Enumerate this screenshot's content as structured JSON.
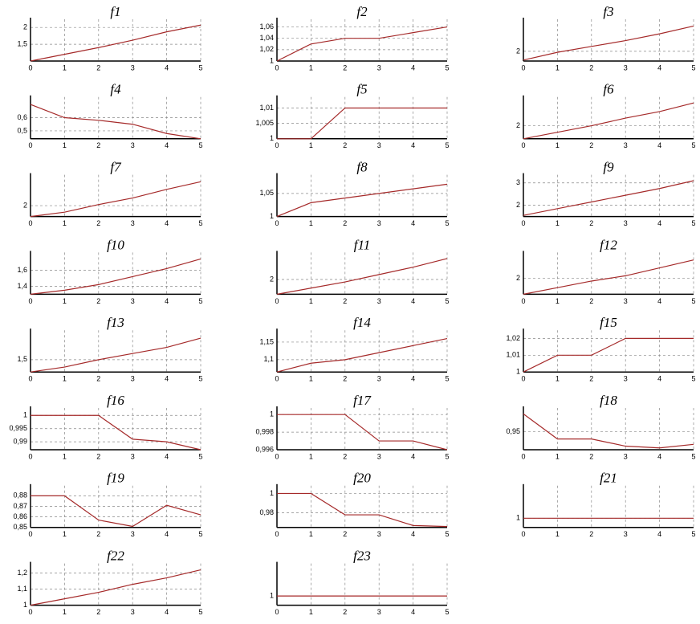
{
  "chart_data": [
    {
      "type": "line",
      "title": "f1",
      "x": [
        0,
        1,
        2,
        3,
        4,
        5
      ],
      "values": [
        1,
        1.2,
        1.4,
        1.62,
        1.87,
        2.07
      ],
      "color": "#a52a2a",
      "xlim": [
        0,
        5
      ],
      "xticks": [
        0,
        1,
        2,
        3,
        4,
        5
      ],
      "ylim": [
        1,
        2.1
      ],
      "yticks": [
        {
          "value": 1.5,
          "label": "1,5"
        },
        2
      ]
    },
    {
      "type": "line",
      "title": "f2",
      "x": [
        0,
        1,
        2,
        3,
        4,
        5
      ],
      "values": [
        1,
        1.03,
        1.04,
        1.04,
        1.05,
        1.06
      ],
      "color": "#a52a2a",
      "xlim": [
        0,
        5
      ],
      "xticks": [
        0,
        1,
        2,
        3,
        4,
        5
      ],
      "ylim": [
        1,
        1.065
      ],
      "yticks": [
        1,
        {
          "value": 1.02,
          "label": "1,02"
        },
        {
          "value": 1.04,
          "label": "1,04"
        },
        {
          "value": 1.06,
          "label": "1,06"
        }
      ]
    },
    {
      "type": "line",
      "title": "f3",
      "x": [
        0,
        1,
        2,
        3,
        4,
        5
      ],
      "values": [
        1.55,
        1.95,
        2.25,
        2.55,
        2.9,
        3.3
      ],
      "color": "#a52a2a",
      "xlim": [
        0,
        5
      ],
      "xticks": [
        0,
        1,
        2,
        3,
        4,
        5
      ],
      "ylim": [
        1.5,
        3.4
      ],
      "yticks": [
        2
      ]
    },
    {
      "type": "line",
      "title": "f4",
      "x": [
        0,
        1,
        2,
        3,
        4,
        5
      ],
      "values": [
        0.7,
        0.6,
        0.58,
        0.55,
        0.48,
        0.44
      ],
      "color": "#a52a2a",
      "xlim": [
        0,
        5
      ],
      "xticks": [
        0,
        1,
        2,
        3,
        4,
        5
      ],
      "ylim": [
        0.44,
        0.72
      ],
      "yticks": [
        {
          "value": 0.5,
          "label": "0,5"
        },
        {
          "value": 0.6,
          "label": "0,6"
        }
      ]
    },
    {
      "type": "line",
      "title": "f5",
      "x": [
        0,
        1,
        2,
        3,
        4,
        5
      ],
      "values": [
        1,
        1,
        1.01,
        1.01,
        1.01,
        1.01
      ],
      "color": "#a52a2a",
      "xlim": [
        0,
        5
      ],
      "xticks": [
        0,
        1,
        2,
        3,
        4,
        5
      ],
      "ylim": [
        1,
        1.012
      ],
      "yticks": [
        1,
        {
          "value": 1.005,
          "label": "1,005"
        },
        {
          "value": 1.01,
          "label": "1,01"
        }
      ]
    },
    {
      "type": "line",
      "title": "f6",
      "x": [
        0,
        1,
        2,
        3,
        4,
        5
      ],
      "values": [
        1.4,
        1.7,
        2,
        2.35,
        2.65,
        3.05
      ],
      "color": "#a52a2a",
      "xlim": [
        0,
        5
      ],
      "xticks": [
        0,
        1,
        2,
        3,
        4,
        5
      ],
      "ylim": [
        1.4,
        3.1
      ],
      "yticks": [
        2
      ]
    },
    {
      "type": "line",
      "title": "f7",
      "x": [
        0,
        1,
        2,
        3,
        4,
        5
      ],
      "values": [
        1.5,
        1.7,
        2.05,
        2.35,
        2.75,
        3.1
      ],
      "color": "#a52a2a",
      "xlim": [
        0,
        5
      ],
      "xticks": [
        0,
        1,
        2,
        3,
        4,
        5
      ],
      "ylim": [
        1.5,
        3.2
      ],
      "yticks": [
        2
      ]
    },
    {
      "type": "line",
      "title": "f8",
      "x": [
        0,
        1,
        2,
        3,
        4,
        5
      ],
      "values": [
        1,
        1.03,
        1.04,
        1.05,
        1.06,
        1.07
      ],
      "color": "#a52a2a",
      "xlim": [
        0,
        5
      ],
      "xticks": [
        0,
        1,
        2,
        3,
        4,
        5
      ],
      "ylim": [
        1,
        1.08
      ],
      "yticks": [
        1,
        {
          "value": 1.05,
          "label": "1,05"
        }
      ]
    },
    {
      "type": "line",
      "title": "f9",
      "x": [
        0,
        1,
        2,
        3,
        4,
        5
      ],
      "values": [
        1.55,
        1.85,
        2.15,
        2.45,
        2.75,
        3.1
      ],
      "color": "#a52a2a",
      "xlim": [
        0,
        5
      ],
      "xticks": [
        0,
        1,
        2,
        3,
        4,
        5
      ],
      "ylim": [
        1.5,
        3.15
      ],
      "yticks": [
        2,
        3
      ]
    },
    {
      "type": "line",
      "title": "f10",
      "x": [
        0,
        1,
        2,
        3,
        4,
        5
      ],
      "values": [
        1.3,
        1.35,
        1.42,
        1.52,
        1.62,
        1.74
      ],
      "color": "#a52a2a",
      "xlim": [
        0,
        5
      ],
      "xticks": [
        0,
        1,
        2,
        3,
        4,
        5
      ],
      "ylim": [
        1.3,
        1.76
      ],
      "yticks": [
        {
          "value": 1.4,
          "label": "1,4"
        },
        {
          "value": 1.6,
          "label": "1,6"
        }
      ]
    },
    {
      "type": "line",
      "title": "f11",
      "x": [
        0,
        1,
        2,
        3,
        4,
        5
      ],
      "values": [
        1.4,
        1.65,
        1.9,
        2.2,
        2.5,
        2.85
      ],
      "color": "#a52a2a",
      "xlim": [
        0,
        5
      ],
      "xticks": [
        0,
        1,
        2,
        3,
        4,
        5
      ],
      "ylim": [
        1.4,
        2.9
      ],
      "yticks": [
        2
      ]
    },
    {
      "type": "line",
      "title": "f12",
      "x": [
        0,
        1,
        2,
        3,
        4,
        5
      ],
      "values": [
        1.4,
        1.65,
        1.9,
        2.1,
        2.4,
        2.7
      ],
      "color": "#a52a2a",
      "xlim": [
        0,
        5
      ],
      "xticks": [
        0,
        1,
        2,
        3,
        4,
        5
      ],
      "ylim": [
        1.4,
        2.8
      ],
      "yticks": [
        2
      ]
    },
    {
      "type": "line",
      "title": "f13",
      "x": [
        0,
        1,
        2,
        3,
        4,
        5
      ],
      "values": [
        1.3,
        1.38,
        1.5,
        1.6,
        1.7,
        1.85
      ],
      "color": "#a52a2a",
      "xlim": [
        0,
        5
      ],
      "xticks": [
        0,
        1,
        2,
        3,
        4,
        5
      ],
      "ylim": [
        1.3,
        1.9
      ],
      "yticks": [
        {
          "value": 1.5,
          "label": "1,5"
        }
      ]
    },
    {
      "type": "line",
      "title": "f14",
      "x": [
        0,
        1,
        2,
        3,
        4,
        5
      ],
      "values": [
        1.065,
        1.09,
        1.1,
        1.12,
        1.14,
        1.16
      ],
      "color": "#a52a2a",
      "xlim": [
        0,
        5
      ],
      "xticks": [
        0,
        1,
        2,
        3,
        4,
        5
      ],
      "ylim": [
        1.065,
        1.17
      ],
      "yticks": [
        {
          "value": 1.1,
          "label": "1,1"
        },
        {
          "value": 1.15,
          "label": "1,15"
        }
      ]
    },
    {
      "type": "line",
      "title": "f15",
      "x": [
        0,
        1,
        2,
        3,
        4,
        5
      ],
      "values": [
        1,
        1.01,
        1.01,
        1.02,
        1.02,
        1.02
      ],
      "color": "#a52a2a",
      "xlim": [
        0,
        5
      ],
      "xticks": [
        0,
        1,
        2,
        3,
        4,
        5
      ],
      "ylim": [
        1,
        1.022
      ],
      "yticks": [
        1,
        {
          "value": 1.01,
          "label": "1,01"
        },
        {
          "value": 1.02,
          "label": "1,02"
        }
      ]
    },
    {
      "type": "line",
      "title": "f16",
      "x": [
        0,
        1,
        2,
        3,
        4,
        5
      ],
      "values": [
        1,
        1,
        1,
        0.991,
        0.99,
        0.987
      ],
      "color": "#a52a2a",
      "xlim": [
        0,
        5
      ],
      "xticks": [
        0,
        1,
        2,
        3,
        4,
        5
      ],
      "ylim": [
        0.987,
        1.001
      ],
      "yticks": [
        {
          "value": 0.99,
          "label": "0,99"
        },
        {
          "value": 0.995,
          "label": "0,995"
        },
        1
      ]
    },
    {
      "type": "line",
      "title": "f17",
      "x": [
        0,
        1,
        2,
        3,
        4,
        5
      ],
      "values": [
        1,
        1,
        1,
        0.997,
        0.997,
        0.996
      ],
      "color": "#a52a2a",
      "xlim": [
        0,
        5
      ],
      "xticks": [
        0,
        1,
        2,
        3,
        4,
        5
      ],
      "ylim": [
        0.996,
        1.0002
      ],
      "yticks": [
        {
          "value": 0.996,
          "label": "0,996"
        },
        {
          "value": 0.998,
          "label": "0,998"
        },
        1
      ]
    },
    {
      "type": "line",
      "title": "f18",
      "x": [
        0,
        1,
        2,
        3,
        4,
        5
      ],
      "values": [
        1,
        0.93,
        0.93,
        0.91,
        0.905,
        0.915
      ],
      "color": "#a52a2a",
      "xlim": [
        0,
        5
      ],
      "xticks": [
        0,
        1,
        2,
        3,
        4,
        5
      ],
      "ylim": [
        0.9,
        1.003
      ],
      "yticks": [
        {
          "value": 0.95,
          "label": "0,95"
        }
      ]
    },
    {
      "type": "line",
      "title": "f19",
      "x": [
        0,
        1,
        2,
        3,
        4,
        5
      ],
      "values": [
        0.88,
        0.88,
        0.857,
        0.851,
        0.871,
        0.862
      ],
      "color": "#a52a2a",
      "xlim": [
        0,
        5
      ],
      "xticks": [
        0,
        1,
        2,
        3,
        4,
        5
      ],
      "ylim": [
        0.85,
        0.885
      ],
      "yticks": [
        {
          "value": 0.85,
          "label": "0,85"
        },
        {
          "value": 0.86,
          "label": "0,86"
        },
        {
          "value": 0.87,
          "label": "0,87"
        },
        {
          "value": 0.88,
          "label": "0,88"
        }
      ]
    },
    {
      "type": "line",
      "title": "f20",
      "x": [
        0,
        1,
        2,
        3,
        4,
        5
      ],
      "values": [
        1,
        1,
        0.978,
        0.978,
        0.967,
        0.966
      ],
      "color": "#a52a2a",
      "xlim": [
        0,
        5
      ],
      "xticks": [
        0,
        1,
        2,
        3,
        4,
        5
      ],
      "ylim": [
        0.965,
        1.003
      ],
      "yticks": [
        {
          "value": 0.98,
          "label": "0,98"
        },
        1
      ]
    },
    {
      "type": "line",
      "title": "f21",
      "x": [
        0,
        1,
        2,
        3,
        4,
        5
      ],
      "values": [
        1,
        1,
        1,
        1,
        1,
        1
      ],
      "color": "#a52a2a",
      "xlim": [
        0,
        5
      ],
      "xticks": [
        0,
        1,
        2,
        3,
        4,
        5
      ],
      "ylim": [
        0.95,
        1.15
      ],
      "yticks": [
        1
      ]
    },
    {
      "type": "line",
      "title": "f22",
      "x": [
        0,
        1,
        2,
        3,
        4,
        5
      ],
      "values": [
        1,
        1.04,
        1.08,
        1.13,
        1.17,
        1.22
      ],
      "color": "#a52a2a",
      "xlim": [
        0,
        5
      ],
      "xticks": [
        0,
        1,
        2,
        3,
        4,
        5
      ],
      "ylim": [
        1,
        1.23
      ],
      "yticks": [
        1,
        {
          "value": 1.1,
          "label": "1,1"
        },
        {
          "value": 1.2,
          "label": "1,2"
        }
      ]
    },
    {
      "type": "line",
      "title": "f23",
      "x": [
        0,
        1,
        2,
        3,
        4,
        5
      ],
      "values": [
        1,
        1,
        1,
        1,
        1,
        1
      ],
      "color": "#a52a2a",
      "xlim": [
        0,
        5
      ],
      "xticks": [
        0,
        1,
        2,
        3,
        4,
        5
      ],
      "ylim": [
        0.95,
        1.15
      ],
      "yticks": [
        1
      ]
    }
  ]
}
